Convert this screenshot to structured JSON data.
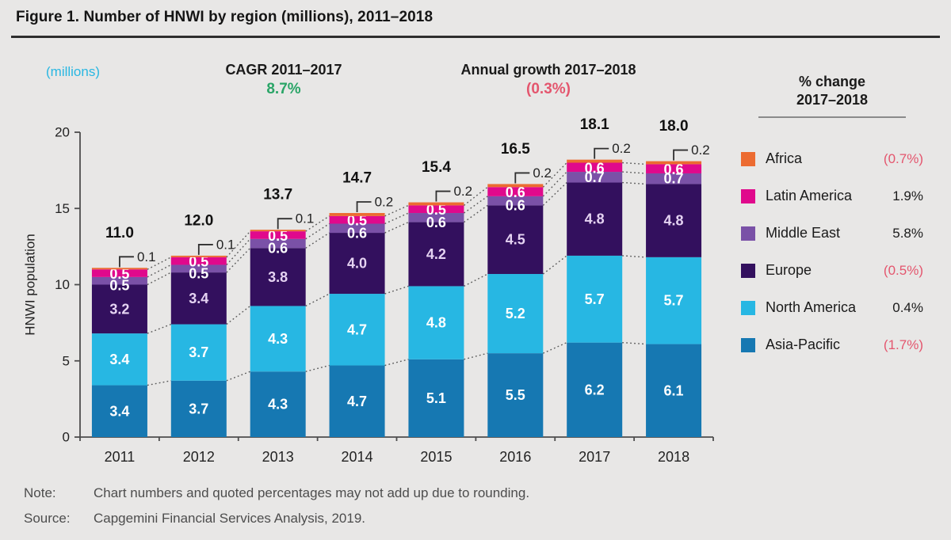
{
  "page": {
    "title": "Figure 1. Number of HNWI by region (millions), 2011–2018",
    "units_label": "(millions)",
    "cagr_label": "CAGR 2011–2017",
    "cagr_value": "8.7%",
    "growth_label": "Annual growth 2017–2018",
    "growth_value": "(0.3%)",
    "note_label": "Note:",
    "note_text": "Chart numbers and quoted percentages may not add up due to rounding.",
    "source_label": "Source:",
    "source_text": "Capgemini Financial Services Analysis, 2019."
  },
  "legend": {
    "header_line1": "% change",
    "header_line2": "2017–2018",
    "items": [
      {
        "label": "Africa",
        "change": "(0.7%)",
        "negative": true,
        "color": "#ec6b31"
      },
      {
        "label": "Latin America",
        "change": "1.9%",
        "negative": false,
        "color": "#e0098c"
      },
      {
        "label": "Middle East",
        "change": "5.8%",
        "negative": false,
        "color": "#7a51a7"
      },
      {
        "label": "Europe",
        "change": "(0.5%)",
        "negative": true,
        "color": "#33105e"
      },
      {
        "label": "North America",
        "change": "0.4%",
        "negative": false,
        "color": "#27b7e3"
      },
      {
        "label": "Asia-Pacific",
        "change": "(1.7%)",
        "negative": true,
        "color": "#1678b2"
      }
    ]
  },
  "chart_data": {
    "type": "bar",
    "stacked": true,
    "title": "Number of HNWI by region (millions), 2011–2018",
    "ylabel": "HNWI population",
    "ylim": [
      0,
      20
    ],
    "yticks": [
      0,
      5,
      10,
      15,
      20
    ],
    "grid": false,
    "legend_position": "right",
    "categories": [
      "2011",
      "2012",
      "2013",
      "2014",
      "2015",
      "2016",
      "2017",
      "2018"
    ],
    "totals": [
      11.0,
      12.0,
      13.7,
      14.7,
      15.4,
      16.5,
      18.1,
      18.0
    ],
    "series": [
      {
        "name": "Asia-Pacific",
        "color": "#1678b2",
        "label_color": "#ffffff",
        "values": [
          3.4,
          3.7,
          4.3,
          4.7,
          5.1,
          5.5,
          6.2,
          6.1
        ]
      },
      {
        "name": "North America",
        "color": "#27b7e3",
        "label_color": "#ffffff",
        "values": [
          3.4,
          3.7,
          4.3,
          4.7,
          4.8,
          5.2,
          5.7,
          5.7
        ]
      },
      {
        "name": "Europe",
        "color": "#33105e",
        "label_color": "#e5d3f2",
        "values": [
          3.2,
          3.4,
          3.8,
          4.0,
          4.2,
          4.5,
          4.8,
          4.8
        ]
      },
      {
        "name": "Middle East",
        "color": "#7a51a7",
        "label_color": "#ffffff",
        "values": [
          0.5,
          0.5,
          0.6,
          0.6,
          0.6,
          0.6,
          0.7,
          0.7
        ]
      },
      {
        "name": "Latin America",
        "color": "#e0098c",
        "label_color": "#ffffff",
        "values": [
          0.5,
          0.5,
          0.5,
          0.5,
          0.5,
          0.6,
          0.6,
          0.6
        ]
      },
      {
        "name": "Africa",
        "color": "#ec6b31",
        "label_color": "#ffffff",
        "callout": true,
        "values": [
          0.1,
          0.1,
          0.1,
          0.2,
          0.2,
          0.2,
          0.2,
          0.2
        ]
      }
    ]
  },
  "colors": {
    "negative": "#e4566e",
    "positive_text": "#1a1a1a",
    "accent_green": "#2aa567",
    "accent_cyan": "#29b7e2",
    "axis": "#4d4d4d",
    "dotted_line": "#5a5a5a",
    "callout_line": "#2f2f2f",
    "total_label": "#111111",
    "tick_label": "#222222"
  }
}
